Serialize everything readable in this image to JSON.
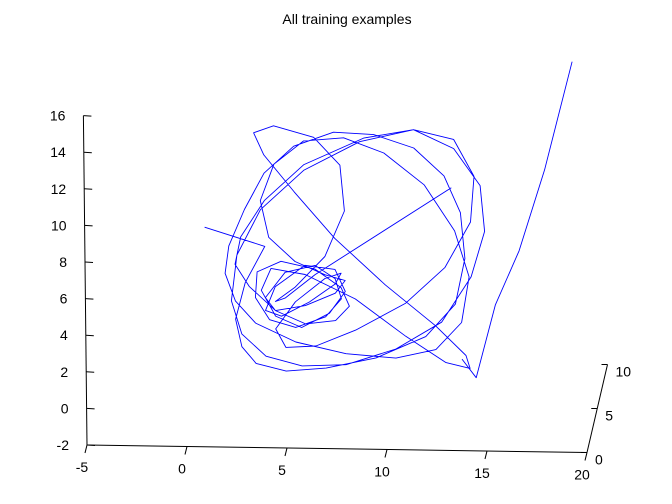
{
  "chart_data": {
    "type": "line",
    "title": "All training examples",
    "xlabel": "",
    "ylabel": "",
    "zlabel": "",
    "view": "3d",
    "xlim": [
      -5,
      20
    ],
    "ylim": [
      -2,
      16
    ],
    "zlim": [
      0,
      10
    ],
    "xticks": [
      -5,
      0,
      5,
      10,
      15,
      20
    ],
    "yticks": [
      -2,
      0,
      2,
      4,
      6,
      8,
      10,
      12,
      14,
      16
    ],
    "zticks": [
      0,
      5,
      10
    ],
    "grid": false,
    "line_color": "#0000ff",
    "series": [
      {
        "description_only": false,
        "x": [
          1.0,
          4.0,
          3.0,
          2.5,
          2.8,
          3.5,
          5.0,
          7.0,
          9.5,
          12.0,
          13.5,
          14.0,
          13.8,
          13.0,
          11.5,
          9.5,
          7.5,
          5.5,
          4.0,
          3.0,
          2.2,
          2.0,
          2.5,
          3.5,
          5.5,
          8.0,
          10.5,
          12.5,
          13.8,
          14.2,
          13.5,
          12.0,
          10.0,
          8.0,
          6.0,
          4.5,
          3.8,
          4.2,
          5.5,
          7.0,
          8.0,
          7.5,
          6.0,
          4.5,
          4.0,
          5.0,
          6.5,
          7.5,
          7.8,
          7.0,
          5.5,
          4.2,
          3.5,
          3.6,
          4.8,
          6.5,
          7.8,
          8.2,
          7.5,
          6.0,
          4.5,
          3.2,
          2.5,
          2.8,
          4.0,
          6.0,
          9.0,
          11.5,
          13.5,
          14.8,
          15.0,
          14.3,
          12.8,
          10.5,
          8.0,
          5.8,
          4.0,
          2.8,
          2.3,
          2.6,
          3.8,
          6.0,
          8.8,
          11.5,
          13.5,
          14.5,
          14.3,
          13.0,
          11.0,
          8.5,
          6.5,
          5.0,
          4.5,
          5.5,
          7.0,
          7.8,
          7.5,
          6.2,
          4.8,
          4.0,
          4.5,
          6.0,
          7.5,
          8.0,
          7.2,
          5.8,
          4.5,
          3.8,
          4.3,
          6.0,
          8.5,
          11.0,
          13.0,
          14.2,
          14.0,
          12.5,
          10.0,
          7.5,
          5.5,
          4.0,
          3.5,
          4.5,
          6.5,
          7.8,
          8.0,
          7.0,
          5.5,
          4.5,
          5.0,
          6.5,
          12.5
        ],
        "y": [
          10.0,
          9.0,
          7.0,
          5.0,
          3.5,
          2.6,
          2.2,
          2.4,
          3.0,
          4.2,
          6.0,
          8.5,
          11.0,
          13.0,
          14.5,
          15.2,
          15.3,
          14.5,
          13.0,
          11.0,
          9.0,
          7.5,
          6.0,
          4.8,
          3.8,
          3.2,
          3.0,
          3.5,
          5.0,
          7.5,
          10.0,
          12.5,
          14.2,
          15.0,
          14.8,
          13.5,
          11.5,
          9.5,
          8.2,
          7.5,
          7.2,
          6.5,
          5.8,
          5.5,
          6.2,
          7.6,
          8.0,
          7.3,
          6.2,
          5.2,
          4.6,
          5.0,
          6.2,
          7.6,
          8.2,
          7.8,
          6.8,
          5.8,
          5.0,
          4.8,
          5.5,
          6.8,
          8.0,
          9.5,
          11.5,
          13.5,
          15.0,
          15.5,
          14.5,
          12.5,
          10.0,
          7.5,
          5.0,
          3.5,
          2.6,
          2.5,
          3.0,
          4.2,
          6.0,
          8.5,
          11.0,
          13.2,
          14.8,
          15.5,
          15.0,
          13.0,
          10.5,
          8.0,
          6.0,
          4.5,
          3.6,
          3.5,
          4.5,
          6.0,
          7.3,
          7.6,
          7.0,
          6.0,
          5.2,
          5.5,
          6.8,
          8.0,
          7.8,
          6.6,
          5.4,
          4.6,
          5.2,
          6.6,
          7.8,
          7.5,
          6.2,
          4.2,
          2.8,
          2.5,
          3.2,
          4.8,
          7.0,
          9.5,
          12.0,
          14.0,
          15.2,
          15.6,
          15.0,
          13.5,
          11.0,
          8.5,
          6.8,
          6.0,
          6.2,
          7.5,
          8.5
        ],
        "z": [
          0,
          0,
          0,
          0,
          0,
          0,
          0,
          0,
          0,
          0,
          0,
          0,
          0,
          0,
          0,
          0,
          0,
          0,
          0,
          0,
          0,
          0,
          0,
          0,
          0,
          0,
          0,
          0,
          0,
          0,
          0,
          0,
          0,
          0,
          0,
          0,
          0,
          0,
          0,
          0,
          0,
          0,
          0,
          0,
          0,
          0,
          0,
          0,
          0,
          0,
          0,
          0,
          0,
          0,
          0,
          0,
          0,
          0,
          0,
          0,
          0,
          0,
          0,
          0,
          0,
          0,
          0,
          0,
          0,
          0,
          0,
          0,
          0,
          0,
          0,
          0,
          0,
          0,
          0,
          0,
          0,
          0,
          0,
          0,
          0,
          0,
          0,
          0,
          0,
          0,
          0,
          0,
          0,
          0,
          0,
          0,
          0,
          0,
          0,
          0,
          0,
          0,
          0,
          0,
          0,
          0,
          0,
          0,
          0,
          0,
          0,
          0,
          0,
          0,
          0,
          0,
          0,
          0,
          0,
          0,
          0,
          0,
          0,
          0,
          0,
          0,
          0,
          0,
          0,
          0,
          8
        ]
      },
      {
        "x": [
          13.8,
          14.5,
          15.5,
          16.5,
          17.5,
          18.5
        ],
        "y": [
          3.0,
          2.0,
          6.0,
          8.0,
          11.0,
          15.0
        ],
        "z": [
          0,
          0,
          0,
          2,
          5,
          9
        ]
      }
    ]
  }
}
